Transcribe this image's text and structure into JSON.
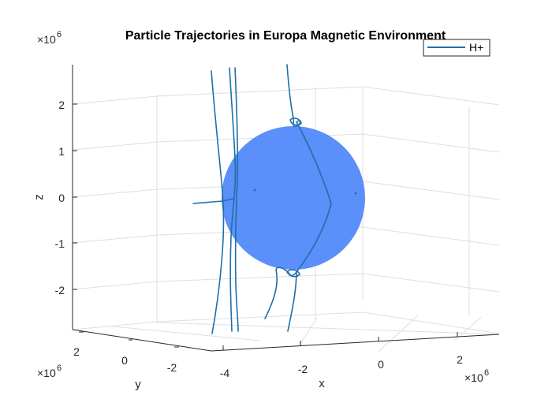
{
  "chart_data": {
    "type": "line3d",
    "title": "Particle Trajectories in Europa Magnetic Environment",
    "xlabel": "x",
    "ylabel": "y",
    "zlabel": "z",
    "x_exponent": "6",
    "y_exponent": "6",
    "z_exponent": "6",
    "x_ticks": [
      "-4",
      "-2",
      "0",
      "2"
    ],
    "y_ticks": [
      "2",
      "0",
      "-2"
    ],
    "z_ticks": [
      "2",
      "1",
      "0",
      "-1",
      "-2"
    ],
    "grid": true,
    "legend": {
      "position": "top-right",
      "entries": [
        "H+"
      ]
    },
    "series": [
      {
        "name": "H+",
        "color": "#1f6fa8"
      }
    ],
    "sphere": {
      "color": "#5b8ff9",
      "center": [
        0,
        0,
        0
      ],
      "radius": 1560000.0
    }
  }
}
